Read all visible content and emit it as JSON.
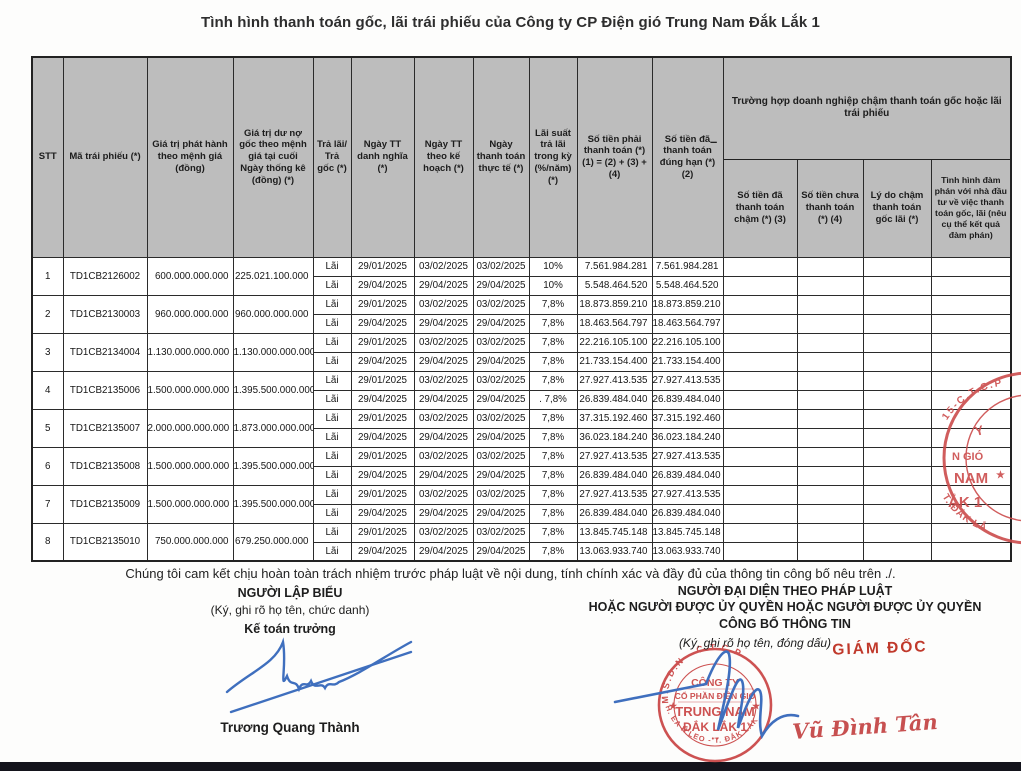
{
  "title": "Tình hình thanh toán gốc, lãi trái phiếu của Công ty CP Điện gió Trung Nam Đắk Lắk 1",
  "table": {
    "stray_mark": "–",
    "headers": {
      "stt": "STT",
      "ma_trai_phieu": "Mã trái phiếu (*)",
      "gia_tri_phat_hanh": "Giá trị phát hành theo mệnh giá (đồng)",
      "gia_tri_du_no": "Giá trị dư nợ gốc theo mệnh giá tại cuối Ngày thống kê (đồng) (*)",
      "tra_lai_goc": "Trả lãi/ Trả gốc (*)",
      "ngay_tt_danh_nghia": "Ngày TT danh nghĩa (*)",
      "ngay_tt_ke_hoach": "Ngày TT theo kế hoạch (*)",
      "ngay_thanh_toan_thuc_te": "Ngày thanh toán thực tế (*)",
      "lai_suat": "Lãi suất trả lãi trong kỳ (%/năm) (*)",
      "so_tien_phai_thanh_toan": "Số tiền phải thanh toán (*) (1) = (2) + (3) + (4)",
      "so_tien_da_thanh_toan_dung_han": "Số tiền đã thanh toán đúng hạn (*) (2)",
      "group_cham_thanh_toan": "Trường hợp doanh nghiệp chậm thanh toán gốc hoặc lãi trái phiếu",
      "so_tien_da_thanh_toan_cham": "Số tiền đã thanh toán chậm (*) (3)",
      "so_tien_chua_thanh_toan": "Số tiền chưa thanh toán (*) (4)",
      "ly_do_cham": "Lý do chậm thanh toán gốc lãi (*)",
      "tinh_hinh_dam_phan": "Tình hình đàm phán với nhà đầu tư về việc thanh toán gốc, lãi (nêu cụ thể kết quả đàm phán)"
    },
    "bonds": [
      {
        "stt": "1",
        "code": "TD1CB2126002",
        "issue_value": "600.000.000.000",
        "outstanding": "225.021.100.000",
        "payments": [
          {
            "type": "Lãi",
            "nominal_date": "29/01/2025",
            "plan_date": "03/02/2025",
            "actual_date": "03/02/2025",
            "rate": "10%",
            "due": "7.561.984.281",
            "paid": "7.561.984.281"
          },
          {
            "type": "Lãi",
            "nominal_date": "29/04/2025",
            "plan_date": "29/04/2025",
            "actual_date": "29/04/2025",
            "rate": "10%",
            "due": "5.548.464.520",
            "paid": "5.548.464.520"
          }
        ]
      },
      {
        "stt": "2",
        "code": "TD1CB2130003",
        "issue_value": "960.000.000.000",
        "outstanding": "960.000.000.000",
        "payments": [
          {
            "type": "Lãi",
            "nominal_date": "29/01/2025",
            "plan_date": "03/02/2025",
            "actual_date": "03/02/2025",
            "rate": "7,8%",
            "due": "18.873.859.210",
            "paid": "18.873.859.210"
          },
          {
            "type": "Lãi",
            "nominal_date": "29/04/2025",
            "plan_date": "29/04/2025",
            "actual_date": "29/04/2025",
            "rate": "7,8%",
            "due": "18.463.564.797",
            "paid": "18.463.564.797"
          }
        ]
      },
      {
        "stt": "3",
        "code": "TD1CB2134004",
        "issue_value": "1.130.000.000.000",
        "outstanding": "1.130.000.000.000",
        "payments": [
          {
            "type": "Lãi",
            "nominal_date": "29/01/2025",
            "plan_date": "03/02/2025",
            "actual_date": "03/02/2025",
            "rate": "7,8%",
            "due": "22.216.105.100",
            "paid": "22.216.105.100"
          },
          {
            "type": "Lãi",
            "nominal_date": "29/04/2025",
            "plan_date": "29/04/2025",
            "actual_date": "29/04/2025",
            "rate": "7,8%",
            "due": "21.733.154.400",
            "paid": "21.733.154.400"
          }
        ]
      },
      {
        "stt": "4",
        "code": "TD1CB2135006",
        "issue_value": "1.500.000.000.000",
        "outstanding": "1.395.500.000.000",
        "payments": [
          {
            "type": "Lãi",
            "nominal_date": "29/01/2025",
            "plan_date": "03/02/2025",
            "actual_date": "03/02/2025",
            "rate": "7,8%",
            "due": "27.927.413.535",
            "paid": "27.927.413.535"
          },
          {
            "type": "Lãi",
            "nominal_date": "29/04/2025",
            "plan_date": "29/04/2025",
            "actual_date": "29/04/2025",
            "rate": ". 7,8%",
            "due": "26.839.484.040",
            "paid": "26.839.484.040"
          }
        ]
      },
      {
        "stt": "5",
        "code": "TD1CB2135007",
        "issue_value": "2.000.000.000.000",
        "outstanding": "1.873.000.000.000",
        "payments": [
          {
            "type": "Lãi",
            "nominal_date": "29/01/2025",
            "plan_date": "03/02/2025",
            "actual_date": "03/02/2025",
            "rate": "7,8%",
            "due": "37.315.192.460",
            "paid": "37.315.192.460"
          },
          {
            "type": "Lãi",
            "nominal_date": "29/04/2025",
            "plan_date": "29/04/2025",
            "actual_date": "29/04/2025",
            "rate": "7,8%",
            "due": "36.023.184.240",
            "paid": "36.023.184.240"
          }
        ]
      },
      {
        "stt": "6",
        "code": "TD1CB2135008",
        "issue_value": "1.500.000.000.000",
        "outstanding": "1.395.500.000.000",
        "payments": [
          {
            "type": "Lãi",
            "nominal_date": "29/01/2025",
            "plan_date": "03/02/2025",
            "actual_date": "03/02/2025",
            "rate": "7,8%",
            "due": "27.927.413.535",
            "paid": "27.927.413.535"
          },
          {
            "type": "Lãi",
            "nominal_date": "29/04/2025",
            "plan_date": "29/04/2025",
            "actual_date": "29/04/2025",
            "rate": "7,8%",
            "due": "26.839.484.040",
            "paid": "26.839.484.040"
          }
        ]
      },
      {
        "stt": "7",
        "code": "TD1CB2135009",
        "issue_value": "1.500.000.000.000",
        "outstanding": "1.395.500.000.000",
        "payments": [
          {
            "type": "Lãi",
            "nominal_date": "29/01/2025",
            "plan_date": "03/02/2025",
            "actual_date": "03/02/2025",
            "rate": "7,8%",
            "due": "27.927.413.535",
            "paid": "27.927.413.535"
          },
          {
            "type": "Lãi",
            "nominal_date": "29/04/2025",
            "plan_date": "29/04/2025",
            "actual_date": "29/04/2025",
            "rate": "7,8%",
            "due": "26.839.484.040",
            "paid": "26.839.484.040"
          }
        ]
      },
      {
        "stt": "8",
        "code": "TD1CB2135010",
        "issue_value": "750.000.000.000",
        "outstanding": "679.250.000.000",
        "payments": [
          {
            "type": "Lãi",
            "nominal_date": "29/01/2025",
            "plan_date": "03/02/2025",
            "actual_date": "03/02/2025",
            "rate": "7,8%",
            "due": "13.845.745.148",
            "paid": "13.845.745.148"
          },
          {
            "type": "Lãi",
            "nominal_date": "29/04/2025",
            "plan_date": "29/04/2025",
            "actual_date": "29/04/2025",
            "rate": "7,8%",
            "due": "13.063.933.740",
            "paid": "13.063.933.740"
          }
        ]
      }
    ]
  },
  "footer": {
    "commitment": "Chúng tôi cam kết chịu hoàn toàn trách nhiệm trước pháp luật về nội dung, tính chính xác và đầy đủ của thông tin công bố nêu trên ./.",
    "left": {
      "title": "NGƯỜI LẬP BIỂU",
      "subtitle": "(Ký, ghi rõ họ tên, chức danh)",
      "role": "Kế toán trưởng",
      "name": "Trương Quang Thành"
    },
    "right": {
      "title_line1": "NGƯỜI ĐẠI DIỆN THEO PHÁP LUẬT",
      "title_line2": "HOẶC NGƯỜI ĐƯỢC ỦY QUYỀN HOẶC NGƯỜI ĐƯỢC ỦY QUYỀN",
      "title_line3": "CÔNG BỐ THÔNG TIN",
      "subtitle": "(Ký, ghi rõ họ tên, đóng dấu)",
      "stamp_role": "GIÁM ĐỐC",
      "name": "Vũ Đình Tân"
    }
  },
  "stamps": {
    "company": {
      "arc_top": "M.S.D.N  -  C.T.C.P",
      "line1": "CÔNG TY",
      "line2": "CỔ PHẦN ĐIỆN GIÓ",
      "line3": "TRUNG NAM",
      "line4": "ĐẮK LẮK 1",
      "arc_bottom": "H. EA H'LEO - T. ĐẮK LẮK",
      "star_left": "★",
      "star_right": "★",
      "dots": "•  •"
    },
    "side": {
      "arc_top": "15-C.T.C.P",
      "frag1": "Y",
      "frag2": "N GIÓ",
      "frag3": "NAM",
      "frag4": "ẮK 1",
      "arc_bottom": "T. ĐẮK LẮ",
      "star": "★"
    }
  },
  "colors": {
    "header_bg": "#bdbdbd",
    "table_border": "#2b2b2b",
    "stamp_red": "#c94444",
    "signature_blue": "#3f6fbe",
    "accent_red_text": "#c0392b",
    "bottom_bar": "#14141c"
  }
}
